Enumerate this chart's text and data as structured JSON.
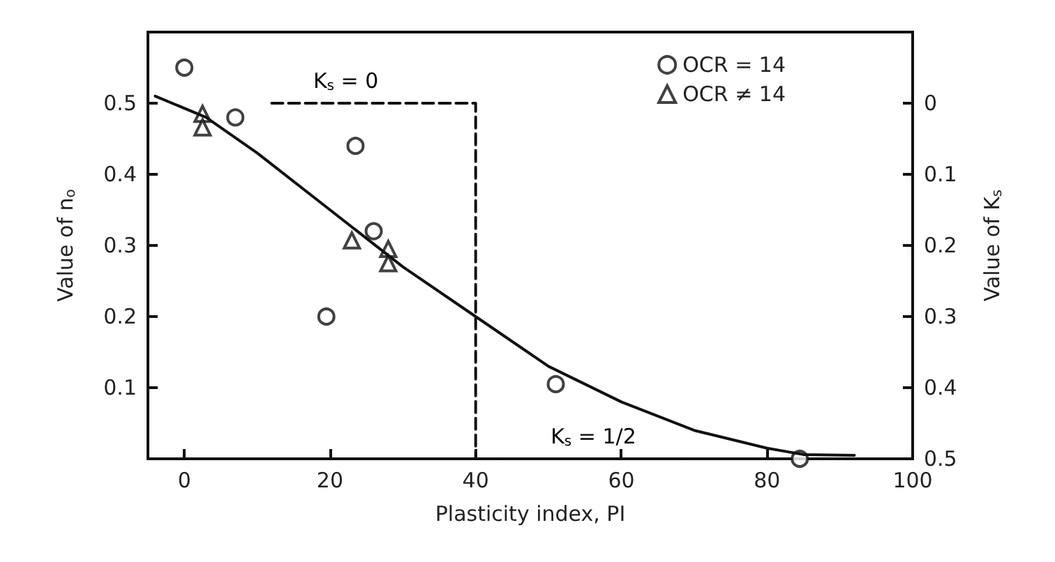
{
  "chart_data": {
    "type": "scatter",
    "xlabel": "Plasticity index, PI",
    "ylabel": "Value of n$_{o}$",
    "y2label": "Value of K$_{s}$",
    "xlim": [
      -5,
      100
    ],
    "xticks": [
      0,
      20,
      40,
      60,
      80,
      100
    ],
    "ylim": [
      0,
      0.6
    ],
    "yticks": [
      0.1,
      0.2,
      0.3,
      0.4,
      0.5
    ],
    "y2lim": [
      0.5,
      -0.1
    ],
    "y2ticks": [
      0,
      0.1,
      0.2,
      0.3,
      0.4,
      0.5
    ],
    "grid": false,
    "legend": "top right",
    "series": [
      {
        "name": "OCR = 14",
        "marker": "circle",
        "color": "#111111",
        "x": [
          0,
          7,
          23.5,
          26,
          19.5,
          51,
          84.5
        ],
        "values": [
          0.55,
          0.48,
          0.44,
          0.32,
          0.2,
          0.105,
          0.0
        ]
      },
      {
        "name": "OCR ≠ 14",
        "marker": "triangle",
        "color": "#111111",
        "x": [
          2.5,
          2.5,
          23,
          28,
          28
        ],
        "values": [
          0.485,
          0.466,
          0.307,
          0.295,
          0.275
        ]
      },
      {
        "type": "line",
        "marker": "none",
        "line_style": "solid",
        "color": "#111111",
        "x": [
          -4,
          3,
          10,
          20,
          30,
          40,
          50,
          60,
          70,
          80,
          85,
          92
        ],
        "values": [
          0.51,
          0.48,
          0.43,
          0.35,
          0.27,
          0.2,
          0.13,
          0.08,
          0.04,
          0.015,
          0.006,
          0.005
        ]
      },
      {
        "type": "line",
        "marker": "none",
        "line_style": "dashed",
        "color": "#111111",
        "x": [
          12,
          40,
          40,
          80
        ],
        "values": [
          0.5,
          0.5,
          0.0,
          0.0
        ]
      }
    ],
    "annotations": [
      "K$_{s}$ = 0",
      "K$_{s}$ = 1/2"
    ]
  }
}
